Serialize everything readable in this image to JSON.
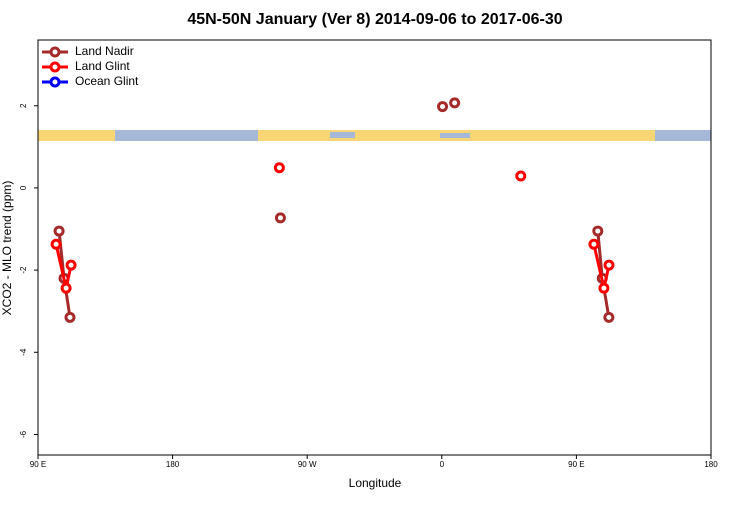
{
  "chart_data": {
    "type": "line",
    "title": "45N-50N January (Ver 8)   2014-09-06 to 2017-06-30",
    "x_label": "Longitude",
    "y_label": "XCO2 - MLO trend (ppm)",
    "xlim": [
      90,
      540
    ],
    "ylim": [
      -6.5,
      3.6
    ],
    "xticks": [
      {
        "value": 90,
        "label": "90 E"
      },
      180,
      {
        "value": 270,
        "label": "90 W"
      },
      {
        "value": 360,
        "label": "0"
      },
      {
        "value": 450,
        "label": "90 E"
      },
      {
        "value": 540,
        "label": "180"
      }
    ],
    "yticks": [
      2,
      0,
      -2,
      -4,
      -6
    ],
    "legend": "top-left",
    "series": [
      {
        "name": "Land Nadir",
        "color": "#a52a2a",
        "x": [
          104.1,
          107.4,
          111.4,
          null,
          252.1,
          null,
          360.5,
          null,
          368.6,
          null,
          464.3,
          467.3,
          471.7
        ],
        "values": [
          -1.05,
          -2.2,
          -3.15,
          null,
          -0.73,
          null,
          1.98,
          null,
          2.07,
          null,
          -1.05,
          -2.2,
          -3.15
        ]
      },
      {
        "name": "Land Glint",
        "color": "#ff0000",
        "x": [
          102.1,
          108.8,
          112.1,
          null,
          251.4,
          null,
          412.8,
          null,
          461.7,
          468.4,
          471.8
        ],
        "values": [
          -1.37,
          -2.44,
          -1.88,
          null,
          0.49,
          null,
          0.29,
          null,
          -1.37,
          -2.44,
          -1.88
        ]
      },
      {
        "name": "Ocean Glint",
        "color": "#0000ff",
        "x": [],
        "values": []
      }
    ]
  }
}
